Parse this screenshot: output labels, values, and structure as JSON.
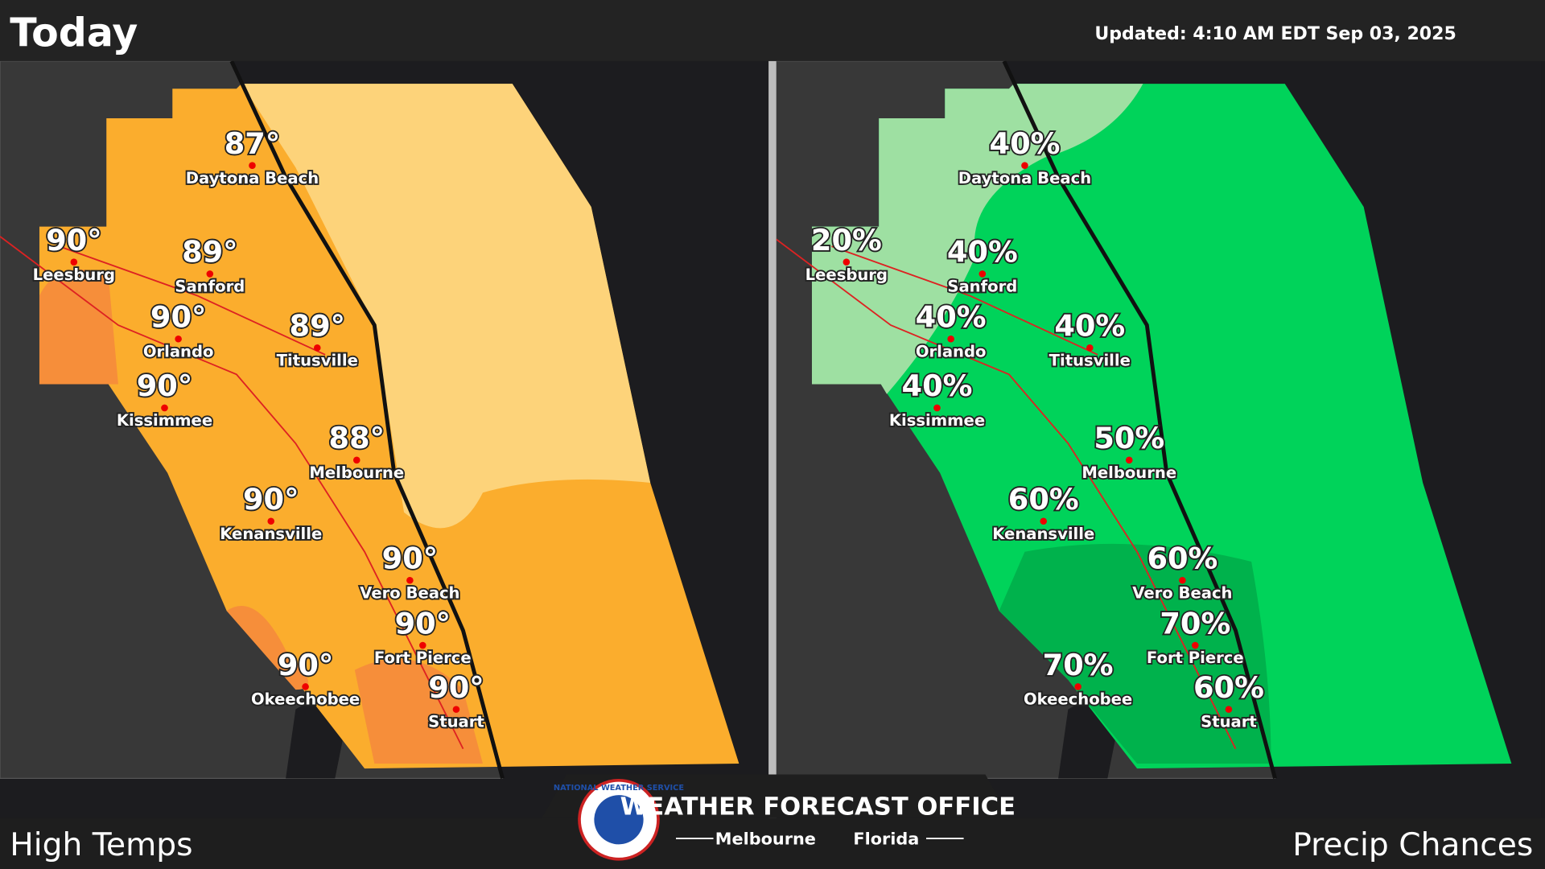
{
  "header": {
    "title": "Today",
    "updated": "Updated:  4:10 AM EDT Sep 03, 2025"
  },
  "panels": [
    {
      "label": "High Temps",
      "cities": [
        {
          "name": "Daytona Beach",
          "value": "87°"
        },
        {
          "name": "Leesburg",
          "value": "90°"
        },
        {
          "name": "Sanford",
          "value": "89°"
        },
        {
          "name": "Orlando",
          "value": "90°"
        },
        {
          "name": "Kissimmee",
          "value": "90°"
        },
        {
          "name": "Titusville",
          "value": "89°"
        },
        {
          "name": "Melbourne",
          "value": "88°"
        },
        {
          "name": "Kenansville",
          "value": "90°"
        },
        {
          "name": "Vero Beach",
          "value": "90°"
        },
        {
          "name": "Fort Pierce",
          "value": "90°"
        },
        {
          "name": "Okeechobee",
          "value": "90°"
        },
        {
          "name": "Stuart",
          "value": "90°"
        }
      ]
    },
    {
      "label": "Precip Chances",
      "cities": [
        {
          "name": "Daytona Beach",
          "value": "40%"
        },
        {
          "name": "Leesburg",
          "value": "20%"
        },
        {
          "name": "Sanford",
          "value": "40%"
        },
        {
          "name": "Orlando",
          "value": "40%"
        },
        {
          "name": "Kissimmee",
          "value": "40%"
        },
        {
          "name": "Titusville",
          "value": "40%"
        },
        {
          "name": "Melbourne",
          "value": "50%"
        },
        {
          "name": "Kenansville",
          "value": "60%"
        },
        {
          "name": "Vero Beach",
          "value": "60%"
        },
        {
          "name": "Fort Pierce",
          "value": "70%"
        },
        {
          "name": "Okeechobee",
          "value": "70%"
        },
        {
          "name": "Stuart",
          "value": "60%"
        }
      ]
    }
  ],
  "footer": {
    "office": "WEATHER FORECAST OFFICE",
    "city": "Melbourne",
    "state": "Florida",
    "logo": "NATIONAL WEATHER SERVICE"
  }
}
